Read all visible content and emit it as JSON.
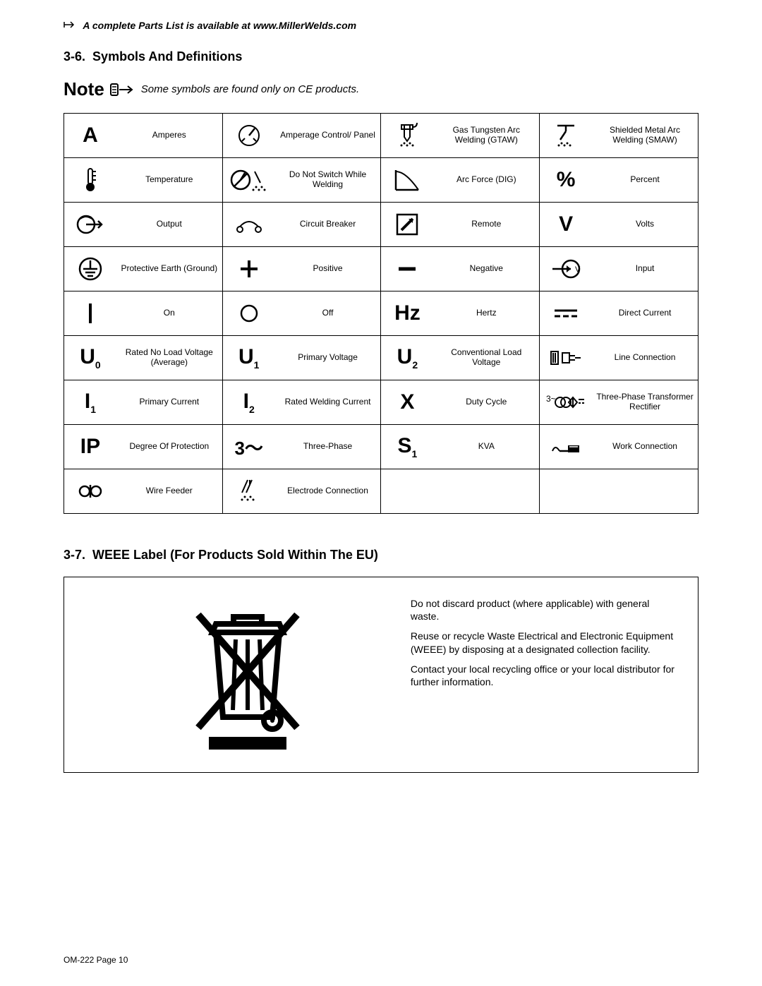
{
  "top_note": "A complete Parts List is available at www.MillerWelds.com",
  "section1": {
    "number": "3-6.",
    "title": "Symbols And Definitions"
  },
  "note": {
    "label": "Note",
    "text": "Some symbols are found only on CE products."
  },
  "rows": [
    [
      {
        "sym": "A",
        "label": "Amperes"
      },
      {
        "sym": "amp-ctrl",
        "label": "Amperage Control/ Panel"
      },
      {
        "sym": "gtaw",
        "label": "Gas Tungsten Arc Welding (GTAW)"
      },
      {
        "sym": "smaw",
        "label": "Shielded Metal Arc Welding (SMAW)"
      }
    ],
    [
      {
        "sym": "temp",
        "label": "Temperature"
      },
      {
        "sym": "noswitch",
        "label": "Do Not Switch While Welding"
      },
      {
        "sym": "arcforce",
        "label": "Arc Force (DIG)"
      },
      {
        "sym": "percent",
        "label": "Percent"
      }
    ],
    [
      {
        "sym": "output",
        "label": "Output"
      },
      {
        "sym": "breaker",
        "label": "Circuit Breaker"
      },
      {
        "sym": "remote",
        "label": "Remote"
      },
      {
        "sym": "V",
        "label": "Volts"
      }
    ],
    [
      {
        "sym": "ground",
        "label": "Protective Earth (Ground)"
      },
      {
        "sym": "plus",
        "label": "Positive"
      },
      {
        "sym": "minus",
        "label": "Negative"
      },
      {
        "sym": "input",
        "label": "Input"
      }
    ],
    [
      {
        "sym": "on",
        "label": "On"
      },
      {
        "sym": "off",
        "label": "Off"
      },
      {
        "sym": "Hz",
        "label": "Hertz"
      },
      {
        "sym": "dc",
        "label": "Direct Current"
      }
    ],
    [
      {
        "sym": "U0",
        "label": "Rated No Load Voltage (Average)"
      },
      {
        "sym": "U1",
        "label": "Primary Voltage"
      },
      {
        "sym": "U2",
        "label": "Conventional Load Voltage"
      },
      {
        "sym": "lineconn",
        "label": "Line Connection"
      }
    ],
    [
      {
        "sym": "I1",
        "label": "Primary Current"
      },
      {
        "sym": "I2",
        "label": "Rated Welding Current"
      },
      {
        "sym": "X",
        "label": "Duty Cycle"
      },
      {
        "sym": "3ph-rect",
        "label": "Three-Phase Transformer Rectifier"
      }
    ],
    [
      {
        "sym": "IP",
        "label": "Degree Of Protection"
      },
      {
        "sym": "3phase",
        "label": "Three-Phase"
      },
      {
        "sym": "S1",
        "label": "KVA"
      },
      {
        "sym": "workconn",
        "label": "Work Connection"
      }
    ],
    [
      {
        "sym": "wirefeed",
        "label": "Wire Feeder"
      },
      {
        "sym": "electrode",
        "label": "Electrode Connection"
      },
      {
        "sym": "",
        "label": ""
      },
      {
        "sym": "",
        "label": ""
      }
    ]
  ],
  "section2": {
    "number": "3-7.",
    "title": "WEEE Label (For Products Sold Within The EU)"
  },
  "weee": {
    "p1": "Do not discard product (where applicable) with general waste.",
    "p2": "Reuse or recycle Waste Electrical and Electronic Equipment (WEEE) by disposing at a designated collection facility.",
    "p3": "Contact your local recycling office or your local distributor for further information."
  },
  "footer": "OM-222 Page 10"
}
